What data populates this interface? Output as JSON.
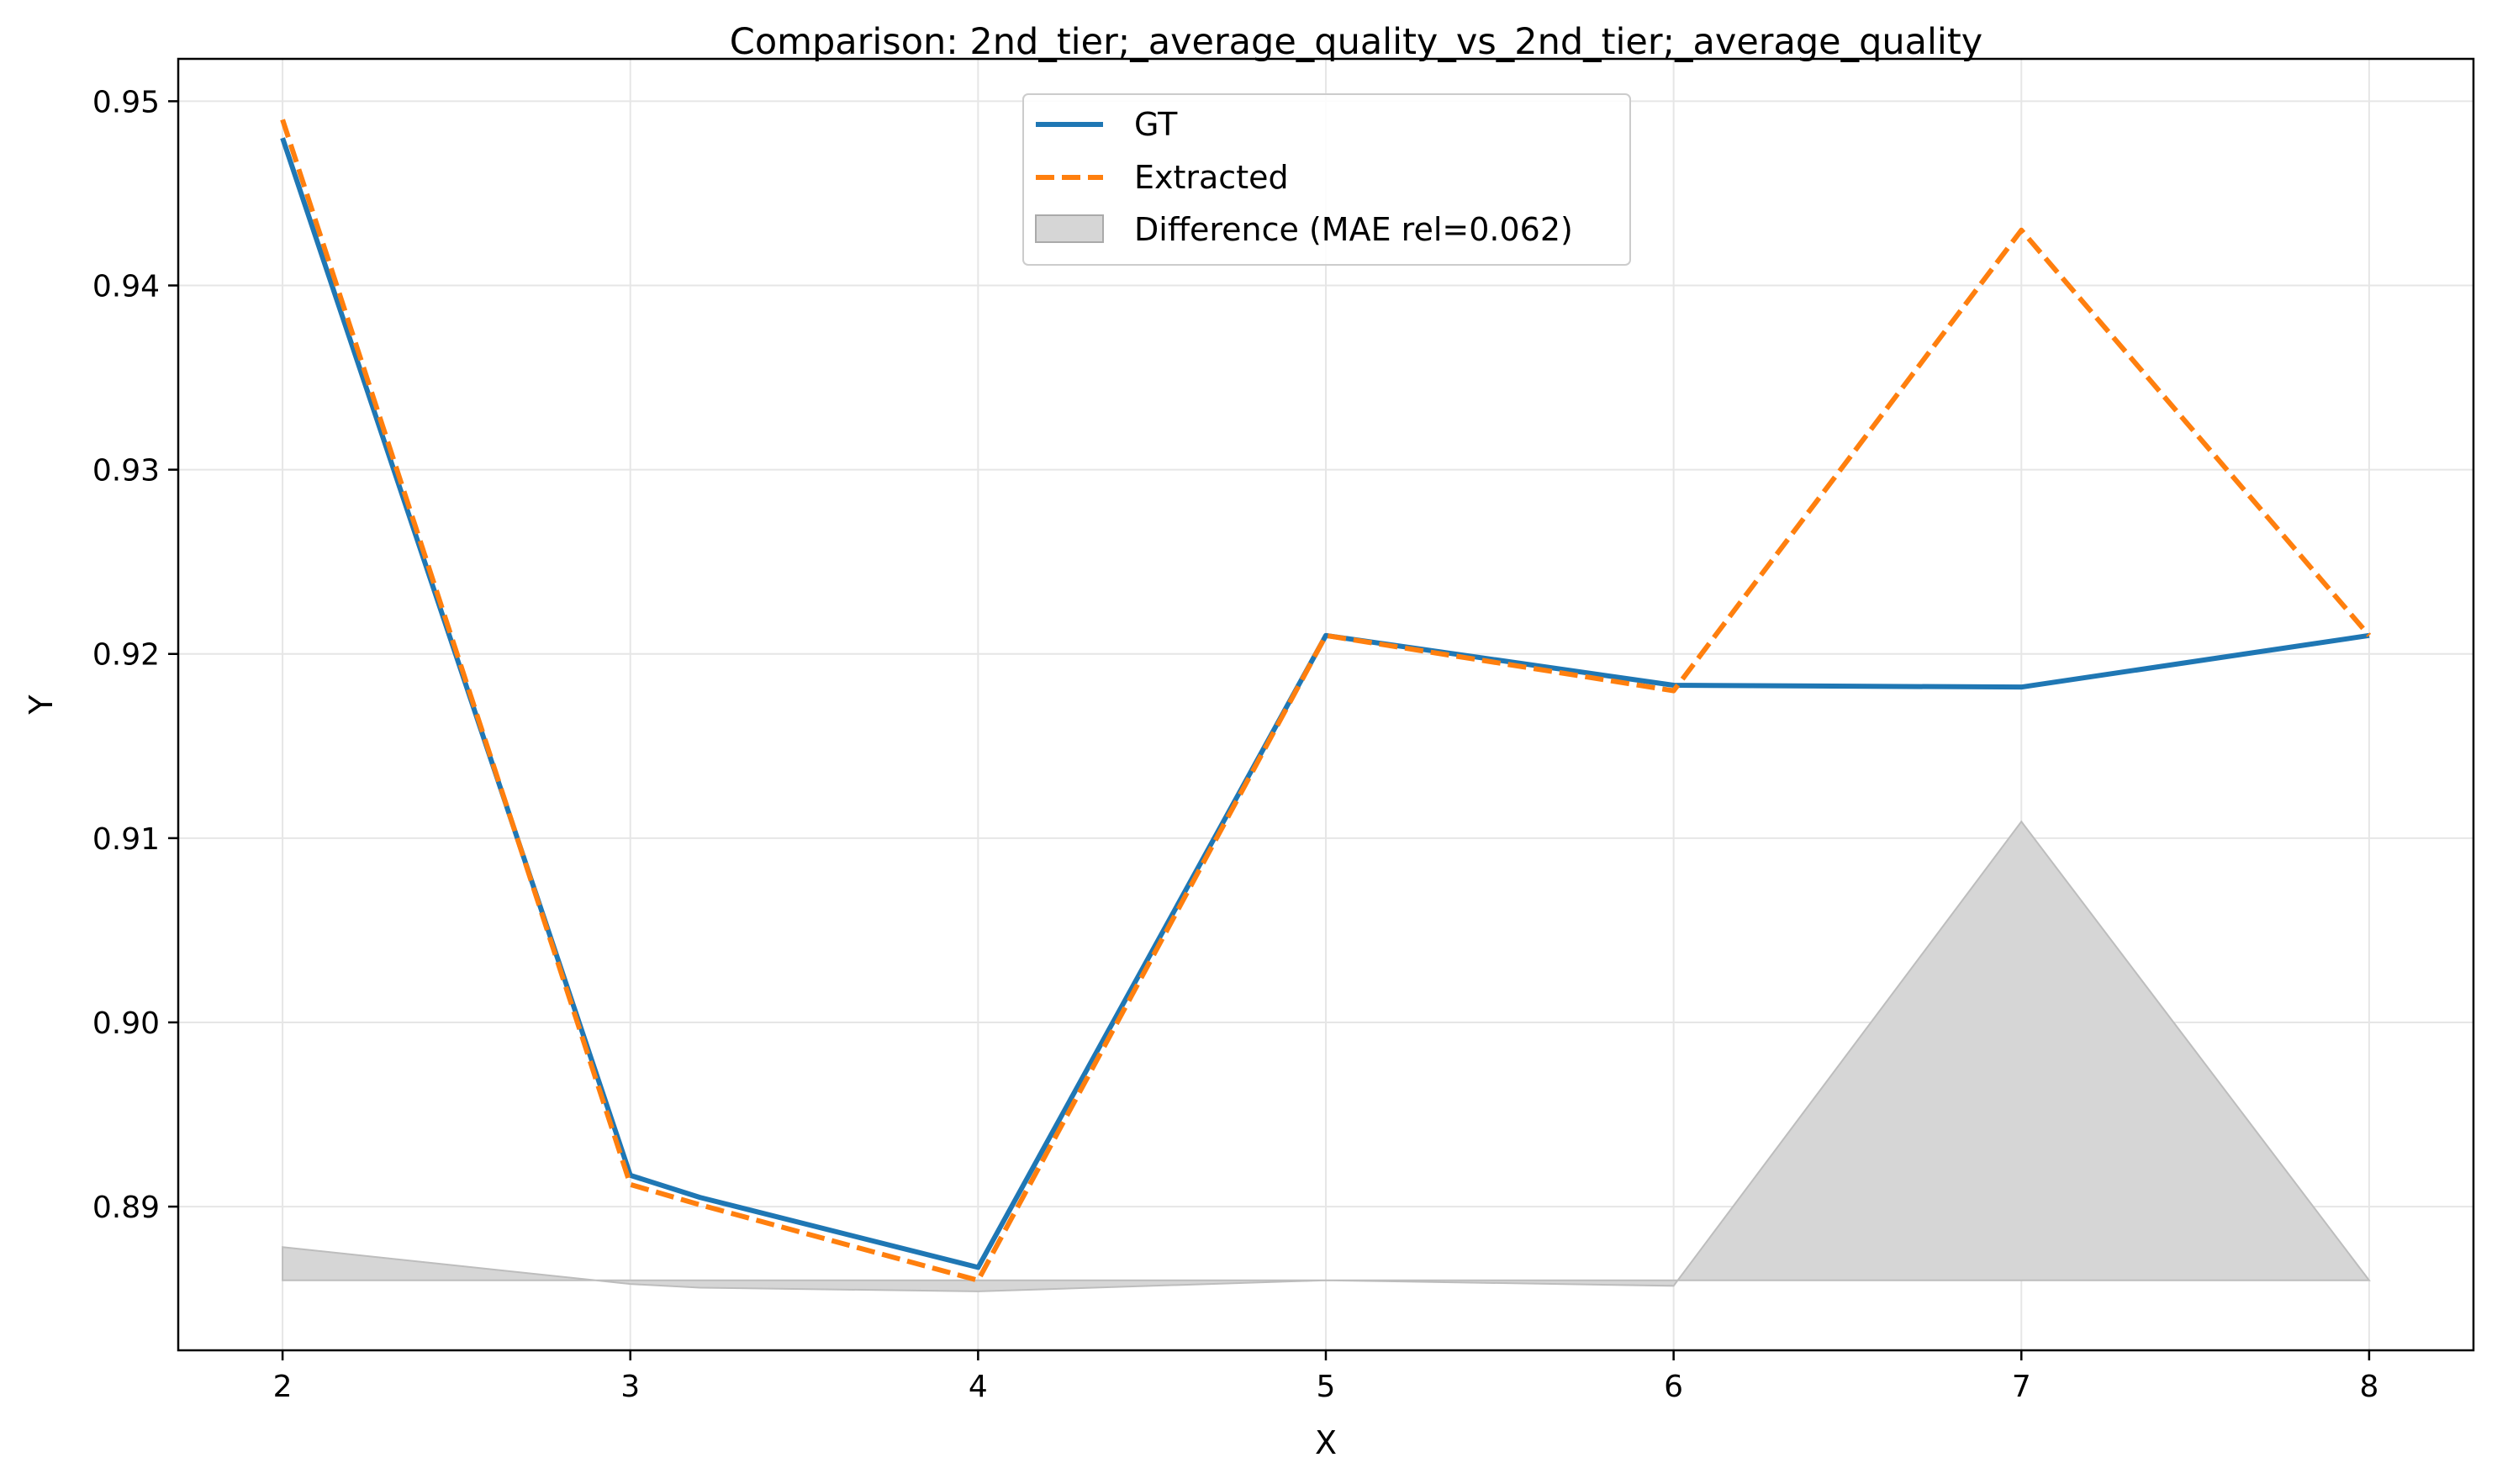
{
  "chart_data": {
    "type": "line",
    "title": "Comparison: 2nd_tier;_average_quality_vs_2nd_tier;_average_quality",
    "xlabel": "X",
    "ylabel": "Y",
    "x": [
      2,
      3,
      3.2,
      4,
      5,
      6,
      7,
      8
    ],
    "xlim": [
      1.7,
      8.3
    ],
    "ylim": [
      0.8822,
      0.9523
    ],
    "xticks": [
      2,
      3,
      4,
      5,
      6,
      7,
      8
    ],
    "yticks": [
      0.89,
      0.9,
      0.91,
      0.92,
      0.93,
      0.94,
      0.95
    ],
    "ytick_labels": [
      "0.89",
      "0.90",
      "0.91",
      "0.92",
      "0.93",
      "0.94",
      "0.95"
    ],
    "grid": true,
    "legend_position": "upper center",
    "series": [
      {
        "name": "GT",
        "color": "#1f77b4",
        "style": "solid",
        "values": [
          0.948,
          0.8917,
          0.8905,
          0.8867,
          0.921,
          0.9183,
          0.9182,
          0.921
        ]
      },
      {
        "name": "Extracted",
        "color": "#ff7f0e",
        "style": "dashed",
        "values": [
          0.949,
          0.8912,
          0.8901,
          0.886,
          0.921,
          0.918,
          0.943,
          0.921
        ]
      }
    ],
    "difference": {
      "name": "Difference (MAE rel=0.062)",
      "color": "#d6d6d6",
      "baseline": 0.886,
      "x": [
        2,
        3,
        3.2,
        4,
        5,
        6,
        7,
        8
      ],
      "values": [
        0.8878,
        0.8858,
        0.8856,
        0.8854,
        0.886,
        0.8857,
        0.9109,
        0.886
      ]
    }
  }
}
